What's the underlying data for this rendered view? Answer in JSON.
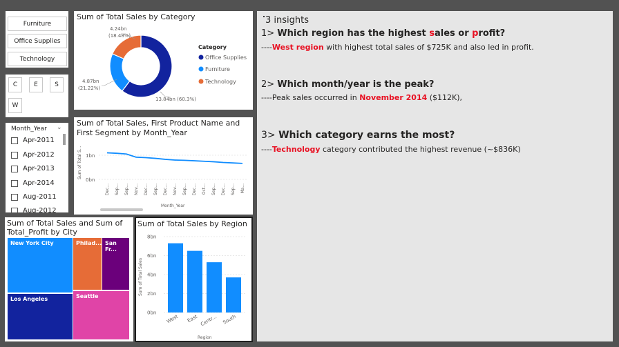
{
  "category_slicer": {
    "items": [
      "Furniture",
      "Office Supplies",
      "Technology"
    ]
  },
  "region_slicer": {
    "items": [
      "C",
      "E",
      "S",
      "W"
    ]
  },
  "month_slicer": {
    "header": "Month_Year",
    "items": [
      "Apr-2011",
      "Apr-2012",
      "Apr-2013",
      "Apr-2014",
      "Aug-2011",
      "Aug-2012"
    ]
  },
  "donut": {
    "title": "Sum of Total Sales by Category",
    "legend_title": "Category",
    "labels": {
      "technology": [
        "4.24bn",
        "(18.48%)"
      ],
      "furniture": [
        "4.87bn",
        "(21.22%)"
      ],
      "office": "13.84bn (60.3%)"
    },
    "colors": {
      "office": "#12239e",
      "furniture": "#118dff",
      "technology": "#e66c37"
    }
  },
  "line_chart": {
    "title_line1": "Sum of Total Sales, First Product Name and",
    "title_line2": "First Segment by Month_Year",
    "ylabel": "Sum of Total S...",
    "xlabel": "Month_Year",
    "y_ticks": [
      "1bn",
      "0bn"
    ],
    "x_ticks": [
      "Dec...",
      "Sep...",
      "Sep...",
      "Nov...",
      "Dec...",
      "Sep...",
      "Dec...",
      "Nov...",
      "Sep...",
      "Dec...",
      "Oct...",
      "Sep...",
      "Dec...",
      "Sep...",
      "Ma..."
    ]
  },
  "treemap": {
    "title_line1": "Sum of Total Sales and Sum of",
    "title_line2": "Total_Profit by City",
    "cities": [
      "New York City",
      "Los Angeles",
      "Philad...",
      "San Fr...",
      "Seattle"
    ]
  },
  "bar_chart": {
    "title": "Sum of Total Sales by Region",
    "ylabel": "Sum of Total Sales",
    "xlabel": "Region",
    "y_ticks": [
      "8bn",
      "6bn",
      "4bn",
      "2bn",
      "0bn"
    ],
    "categories": [
      "West",
      "East",
      "Centr...",
      "South"
    ]
  },
  "insights": {
    "heading": "3 insights",
    "q1_prefix": "1> ",
    "q1_a": "Which region has the highest ",
    "q1_s": "s",
    "q1_b": "ales or ",
    "q1_p": "p",
    "q1_c": "rofit?",
    "a1_dash": "----",
    "a1_red": "West region",
    "a1_rest": " with highest total sales of $725K and also led in profit.",
    "q2_prefix": "2> ",
    "q2": "Which month/year is the peak?",
    "a2_start": "----Peak sales occurred in ",
    "a2_red": "November 2014",
    "a2_rest": " ($112K),",
    "q3_prefix": "3> ",
    "q3": "Which category earns the most?",
    "a3_dash": "----",
    "a3_red": "Technology",
    "a3_rest": " category contributed the highest revenue (~$836K)"
  },
  "chart_data": [
    {
      "type": "pie",
      "title": "Sum of Total Sales by Category",
      "categories": [
        "Office Supplies",
        "Furniture",
        "Technology"
      ],
      "values": [
        13.84,
        4.87,
        4.24
      ],
      "unit": "bn",
      "legend": "right"
    },
    {
      "type": "line",
      "title": "Sum of Total Sales, First Product Name and First Segment by Month_Year",
      "xlabel": "Month_Year",
      "ylabel": "Sum of Total S...",
      "ylim": [
        0,
        1.5
      ],
      "series": [
        {
          "values": [
            1.1,
            1.08,
            1.05,
            0.92,
            0.9,
            0.87,
            0.83,
            0.8,
            0.79,
            0.77,
            0.75,
            0.73,
            0.7,
            0.68,
            0.66
          ]
        }
      ]
    },
    {
      "type": "bar",
      "title": "Sum of Total Sales by Region",
      "categories": [
        "West",
        "East",
        "Central",
        "South"
      ],
      "values": [
        7.3,
        6.5,
        5.3,
        3.7
      ],
      "xlabel": "Region",
      "ylabel": "Sum of Total Sales",
      "ylim": [
        0,
        8
      ]
    },
    {
      "type": "heatmap",
      "title": "Sum of Total Sales and Sum of Total_Profit by City",
      "categories": [
        "New York City",
        "Los Angeles",
        "Philadelphia",
        "San Francisco",
        "Seattle"
      ]
    }
  ]
}
